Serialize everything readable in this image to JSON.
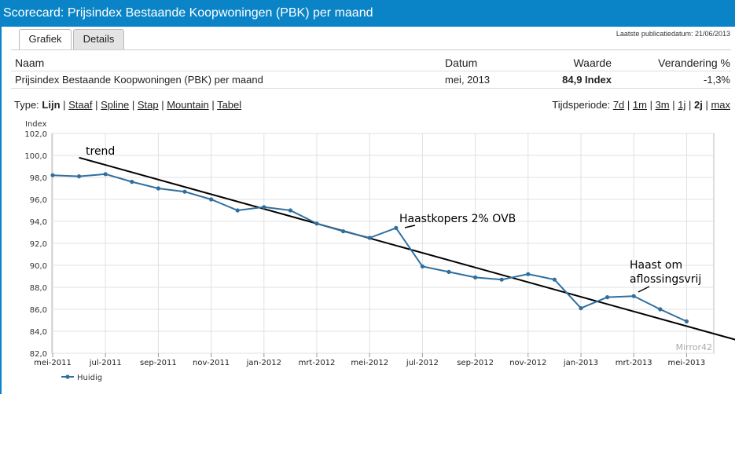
{
  "window": {
    "title": "Scorecard: Prijsindex Bestaande Koopwoningen (PBK) per maand"
  },
  "tabs": [
    {
      "label": "Grafiek",
      "active": true
    },
    {
      "label": "Details",
      "active": false
    }
  ],
  "publication": "Laatste publicatiedatum: 21/06/2013",
  "table": {
    "headers": {
      "naam": "Naam",
      "datum": "Datum",
      "waarde": "Waarde",
      "verandering": "Verandering %"
    },
    "row": {
      "naam": "Prijsindex Bestaande Koopwoningen (PBK) per maand",
      "datum": "mei, 2013",
      "waarde": "84,9 Index",
      "verandering": "-1,3%"
    }
  },
  "type_selector": {
    "label": "Type:",
    "options": [
      "Lijn",
      "Staaf",
      "Spline",
      "Stap",
      "Mountain",
      "Tabel"
    ],
    "selected": "Lijn"
  },
  "period_selector": {
    "label": "Tijdsperiode:",
    "options": [
      "7d",
      "1m",
      "3m",
      "1j",
      "2j",
      "max"
    ],
    "selected": "2j"
  },
  "chart_data": {
    "type": "line",
    "ylabel": "Index",
    "ylim": [
      82,
      102
    ],
    "yticks": [
      "102,0",
      "100,0",
      "98,0",
      "96,0",
      "94,0",
      "92,0",
      "90,0",
      "88,0",
      "86,0",
      "84,0",
      "82,0"
    ],
    "xtick_labels": [
      "mei-2011",
      "jul-2011",
      "sep-2011",
      "nov-2011",
      "jan-2012",
      "mrt-2012",
      "mei-2012",
      "jul-2012",
      "sep-2012",
      "nov-2012",
      "jan-2013",
      "mrt-2013",
      "mei-2013"
    ],
    "grid": true,
    "legend_position": "bottom-left",
    "watermark": "Mirror42",
    "accent_color": "#2f6f9f",
    "series": [
      {
        "name": "Huidig",
        "color": "#2f6f9f",
        "x": [
          "mei-2011",
          "jun-2011",
          "jul-2011",
          "aug-2011",
          "sep-2011",
          "okt-2011",
          "nov-2011",
          "dec-2011",
          "jan-2012",
          "feb-2012",
          "mrt-2012",
          "apr-2012",
          "mei-2012",
          "jun-2012",
          "jul-2012",
          "aug-2012",
          "sep-2012",
          "okt-2012",
          "nov-2012",
          "dec-2012",
          "jan-2013",
          "feb-2013",
          "mrt-2013",
          "apr-2013",
          "mei-2013"
        ],
        "values": [
          98.2,
          98.1,
          98.3,
          97.6,
          97.0,
          96.7,
          96.0,
          95.0,
          95.3,
          95.0,
          93.8,
          93.1,
          92.5,
          93.4,
          89.9,
          89.4,
          88.9,
          88.7,
          89.2,
          88.7,
          86.1,
          87.1,
          87.2,
          86.0,
          84.9
        ]
      }
    ],
    "trendline": {
      "label": "trend",
      "start": {
        "x": "jun-2011",
        "y": 99.8
      },
      "end": {
        "x": "jun-2013",
        "y": 83.2
      }
    },
    "annotations": [
      {
        "text": "trend"
      },
      {
        "text": "Haastkopers 2% OVB"
      },
      {
        "text": "Haast om"
      },
      {
        "text": "aflossingsvrij"
      }
    ]
  }
}
